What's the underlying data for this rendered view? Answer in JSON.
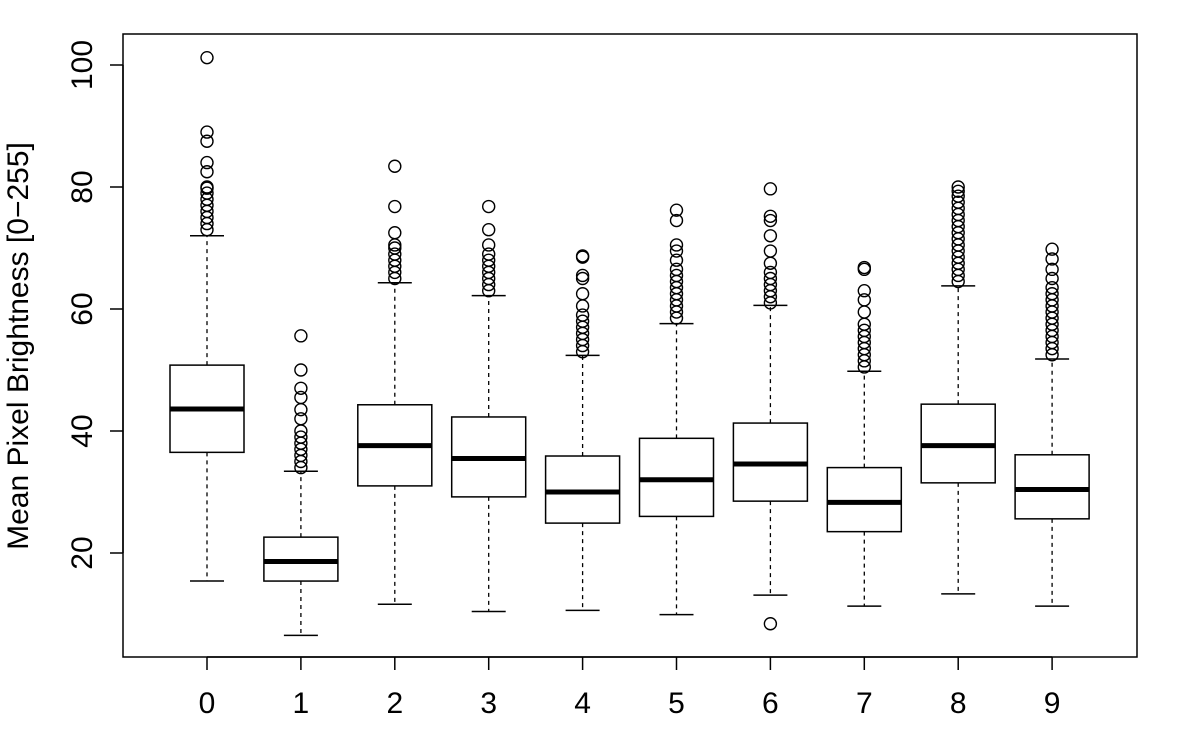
{
  "chart_data": {
    "type": "boxplot",
    "title": "",
    "xlabel": "",
    "ylabel": "Mean Pixel Brightness [0−255]",
    "categories": [
      "0",
      "1",
      "2",
      "3",
      "4",
      "5",
      "6",
      "7",
      "8",
      "9"
    ],
    "ylim": [
      3,
      105
    ],
    "yticks": [
      "20",
      "40",
      "60",
      "80",
      "100"
    ],
    "grid": false,
    "boxes": [
      {
        "label": "0",
        "whisker_low": 15.4,
        "q1": 36.5,
        "median": 43.6,
        "q3": 50.8,
        "whisker_high": 72.0,
        "outliers_high": [
          73.0,
          74.0,
          75.0,
          76.0,
          77.0,
          78.0,
          79.0,
          79.8,
          80.0,
          82.5,
          84.0,
          87.5,
          89.0,
          101.2
        ],
        "outliers_low": []
      },
      {
        "label": "1",
        "whisker_low": 6.5,
        "q1": 15.4,
        "median": 18.6,
        "q3": 22.6,
        "whisker_high": 33.4,
        "outliers_high": [
          34.0,
          35.0,
          36.0,
          37.0,
          38.0,
          39.0,
          40.0,
          42.0,
          43.5,
          45.5,
          47.0,
          50.0,
          55.6
        ],
        "outliers_low": []
      },
      {
        "label": "2",
        "whisker_low": 11.6,
        "q1": 31.0,
        "median": 37.6,
        "q3": 44.3,
        "whisker_high": 64.3,
        "outliers_high": [
          65.0,
          66.0,
          67.0,
          68.0,
          69.0,
          70.0,
          70.5,
          72.5,
          76.8,
          83.4
        ],
        "outliers_low": []
      },
      {
        "label": "3",
        "whisker_low": 10.4,
        "q1": 29.2,
        "median": 35.5,
        "q3": 42.3,
        "whisker_high": 62.2,
        "outliers_high": [
          63.0,
          64.0,
          65.0,
          66.0,
          67.0,
          68.0,
          69.0,
          70.5,
          73.0,
          76.8
        ],
        "outliers_low": []
      },
      {
        "label": "4",
        "whisker_low": 10.6,
        "q1": 24.9,
        "median": 30.0,
        "q3": 35.9,
        "whisker_high": 52.4,
        "outliers_high": [
          53.0,
          54.0,
          55.0,
          56.0,
          57.0,
          58.0,
          59.0,
          60.5,
          62.5,
          65.0,
          65.5,
          68.5,
          68.7
        ],
        "outliers_low": []
      },
      {
        "label": "5",
        "whisker_low": 9.9,
        "q1": 26.0,
        "median": 32.0,
        "q3": 38.8,
        "whisker_high": 57.6,
        "outliers_high": [
          58.5,
          59.5,
          60.5,
          61.5,
          62.5,
          63.5,
          64.5,
          65.5,
          66.5,
          68.0,
          69.5,
          70.5,
          74.5,
          76.2
        ],
        "outliers_low": []
      },
      {
        "label": "6",
        "whisker_low": 13.1,
        "q1": 28.5,
        "median": 34.6,
        "q3": 41.3,
        "whisker_high": 60.6,
        "outliers_high": [
          61.0,
          62.0,
          63.0,
          64.0,
          65.0,
          66.0,
          67.5,
          69.5,
          72.0,
          74.5,
          75.2,
          79.7
        ],
        "outliers_low": [
          8.4
        ]
      },
      {
        "label": "7",
        "whisker_low": 11.3,
        "q1": 23.5,
        "median": 28.3,
        "q3": 34.0,
        "whisker_high": 49.8,
        "outliers_high": [
          50.5,
          51.5,
          52.5,
          53.5,
          54.5,
          55.5,
          56.5,
          57.5,
          59.5,
          61.5,
          63.0,
          66.5,
          66.8
        ],
        "outliers_low": []
      },
      {
        "label": "8",
        "whisker_low": 13.3,
        "q1": 31.5,
        "median": 37.6,
        "q3": 44.4,
        "whisker_high": 63.8,
        "outliers_high": [
          64.5,
          65.5,
          66.5,
          67.5,
          68.5,
          69.5,
          70.5,
          71.5,
          72.5,
          73.5,
          74.5,
          75.5,
          76.5,
          77.5,
          78.5,
          79.3,
          80.0
        ],
        "outliers_low": []
      },
      {
        "label": "9",
        "whisker_low": 11.3,
        "q1": 25.6,
        "median": 30.4,
        "q3": 36.1,
        "whisker_high": 51.8,
        "outliers_high": [
          52.5,
          53.5,
          54.5,
          55.5,
          56.5,
          57.5,
          58.5,
          59.5,
          60.5,
          61.5,
          62.5,
          63.5,
          65.0,
          66.5,
          68.2,
          69.8
        ],
        "outliers_low": []
      }
    ]
  }
}
